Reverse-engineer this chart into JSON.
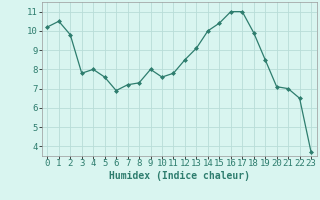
{
  "x": [
    0,
    1,
    2,
    3,
    4,
    5,
    6,
    7,
    8,
    9,
    10,
    11,
    12,
    13,
    14,
    15,
    16,
    17,
    18,
    19,
    20,
    21,
    22,
    23
  ],
  "y": [
    10.2,
    10.5,
    9.8,
    7.8,
    8.0,
    7.6,
    6.9,
    7.2,
    7.3,
    8.0,
    7.6,
    7.8,
    8.5,
    9.1,
    10.0,
    10.4,
    11.0,
    11.0,
    9.9,
    8.5,
    7.1,
    7.0,
    6.5,
    3.7
  ],
  "line_color": "#2e7d6e",
  "marker": "D",
  "marker_size": 2,
  "bg_color": "#d9f5f0",
  "grid_color": "#b8ddd8",
  "xlabel": "Humidex (Indice chaleur)",
  "ylim": [
    3.5,
    11.5
  ],
  "xlim": [
    -0.5,
    23.5
  ],
  "yticks": [
    4,
    5,
    6,
    7,
    8,
    9,
    10,
    11
  ],
  "xticks": [
    0,
    1,
    2,
    3,
    4,
    5,
    6,
    7,
    8,
    9,
    10,
    11,
    12,
    13,
    14,
    15,
    16,
    17,
    18,
    19,
    20,
    21,
    22,
    23
  ],
  "xlabel_fontsize": 7,
  "tick_fontsize": 6.5
}
